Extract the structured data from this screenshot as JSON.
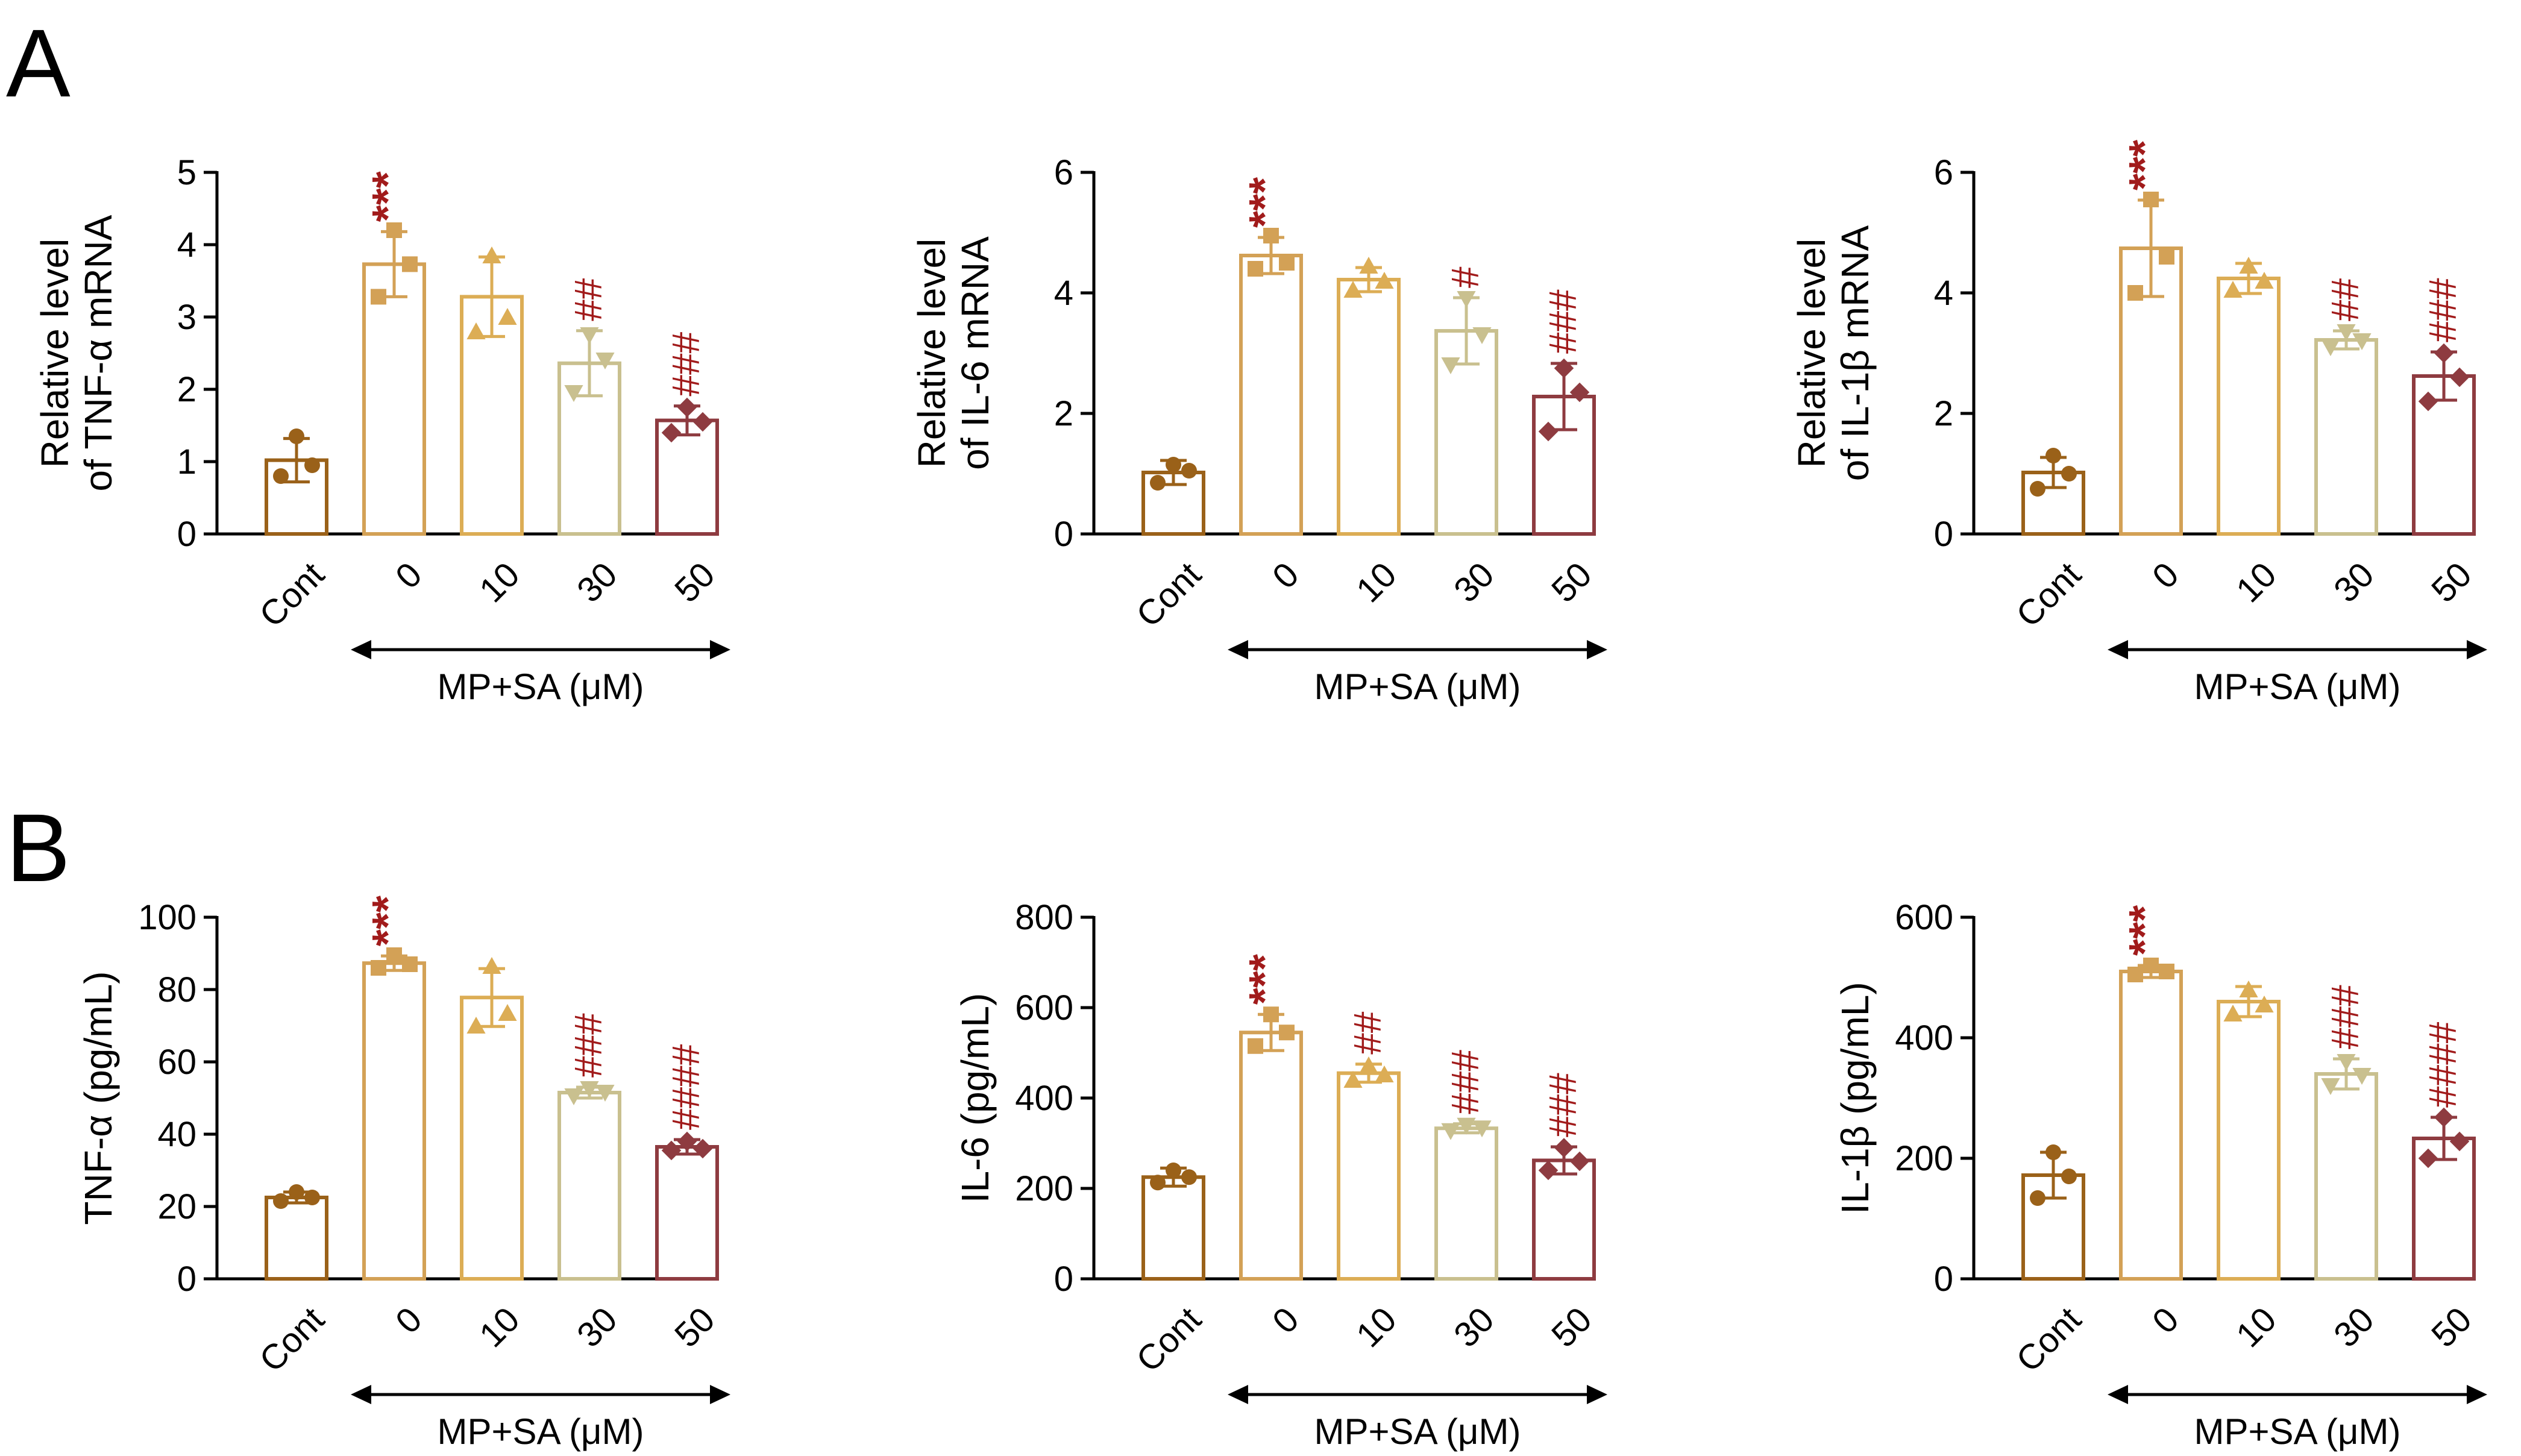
{
  "panel_labels": [
    "A",
    "B"
  ],
  "colors": [
    "#9a6119",
    "#d3a156",
    "#dcad55",
    "#c9c08f",
    "#8e3b40"
  ],
  "significance_color": "#a11b1b",
  "chart_data": [
    {
      "type": "bar",
      "panel": "A",
      "ylabel_lines": [
        "Relative level",
        "of TNF-α mRNA"
      ],
      "ylim": [
        0,
        5
      ],
      "yticks": [
        "0",
        "1",
        "2",
        "3",
        "4",
        "5"
      ],
      "categories": [
        "Cont",
        "0",
        "10",
        "30",
        "50"
      ],
      "group_label": "MP+SA (μM)",
      "marker_shapes": [
        "circle",
        "square",
        "triangle-up",
        "triangle-down",
        "diamond"
      ],
      "values": [
        1.02,
        3.73,
        3.28,
        2.36,
        1.57
      ],
      "errors": [
        0.3,
        0.45,
        0.55,
        0.45,
        0.2
      ],
      "points": [
        [
          0.8,
          0.95,
          1.35
        ],
        [
          3.28,
          3.73,
          4.2
        ],
        [
          2.8,
          3.0,
          3.85
        ],
        [
          1.95,
          2.4,
          2.75
        ],
        [
          1.4,
          1.55,
          1.75
        ]
      ],
      "significance": [
        "",
        "***",
        "",
        "##",
        "###"
      ]
    },
    {
      "type": "bar",
      "panel": "A",
      "ylabel_lines": [
        "Relative level",
        "of IL-6 mRNA"
      ],
      "ylim": [
        0,
        6
      ],
      "yticks": [
        "0",
        "2",
        "4",
        "6"
      ],
      "categories": [
        "Cont",
        "0",
        "10",
        "30",
        "50"
      ],
      "group_label": "MP+SA (μM)",
      "marker_shapes": [
        "circle",
        "square",
        "triangle-up",
        "triangle-down",
        "diamond"
      ],
      "values": [
        1.02,
        4.62,
        4.22,
        3.37,
        2.28
      ],
      "errors": [
        0.2,
        0.3,
        0.2,
        0.55,
        0.55
      ],
      "points": [
        [
          0.85,
          1.05,
          1.15
        ],
        [
          4.4,
          4.5,
          4.95
        ],
        [
          4.05,
          4.2,
          4.45
        ],
        [
          2.8,
          3.3,
          3.9
        ],
        [
          1.7,
          2.35,
          2.75
        ]
      ],
      "significance": [
        "",
        "***",
        "",
        "#",
        "###"
      ]
    },
    {
      "type": "bar",
      "panel": "A",
      "ylabel_lines": [
        "Relative level",
        "of IL-1β mRNA"
      ],
      "ylim": [
        0,
        6
      ],
      "yticks": [
        "0",
        "2",
        "4",
        "6"
      ],
      "categories": [
        "Cont",
        "0",
        "10",
        "30",
        "50"
      ],
      "group_label": "MP+SA (μM)",
      "marker_shapes": [
        "circle",
        "square",
        "triangle-up",
        "triangle-down",
        "diamond"
      ],
      "values": [
        1.02,
        4.74,
        4.24,
        3.22,
        2.62
      ],
      "errors": [
        0.25,
        0.8,
        0.25,
        0.15,
        0.4
      ],
      "points": [
        [
          0.75,
          1.0,
          1.3
        ],
        [
          4.0,
          4.6,
          5.55
        ],
        [
          4.05,
          4.2,
          4.45
        ],
        [
          3.1,
          3.2,
          3.35
        ],
        [
          2.2,
          2.6,
          3.0
        ]
      ],
      "significance": [
        "",
        "***",
        "",
        "##",
        "###"
      ]
    },
    {
      "type": "bar",
      "panel": "B",
      "ylabel_lines": [
        "TNF-α (pg/mL)"
      ],
      "ylim": [
        0,
        100
      ],
      "yticks": [
        "0",
        "20",
        "40",
        "60",
        "80",
        "100"
      ],
      "categories": [
        "Cont",
        "0",
        "10",
        "30",
        "50"
      ],
      "group_label": "MP+SA (μM)",
      "marker_shapes": [
        "circle",
        "square",
        "triangle-up",
        "triangle-down",
        "diamond"
      ],
      "values": [
        22.5,
        87.3,
        77.8,
        51.5,
        36.5
      ],
      "errors": [
        1.5,
        2.0,
        8.0,
        1.5,
        2.0
      ],
      "points": [
        [
          21.5,
          22.5,
          24.0
        ],
        [
          86.0,
          87.0,
          89.5
        ],
        [
          70.0,
          73.5,
          86.5
        ],
        [
          50.5,
          51.5,
          52.5
        ],
        [
          35.5,
          36.0,
          38.0
        ]
      ],
      "significance": [
        "",
        "***",
        "",
        "###",
        "####"
      ]
    },
    {
      "type": "bar",
      "panel": "B",
      "ylabel_lines": [
        "IL-6 (pg/mL)"
      ],
      "ylim": [
        0,
        800
      ],
      "yticks": [
        "0",
        "200",
        "400",
        "600",
        "800"
      ],
      "categories": [
        "Cont",
        "0",
        "10",
        "30",
        "50"
      ],
      "group_label": "MP+SA (μM)",
      "marker_shapes": [
        "circle",
        "square",
        "triangle-up",
        "triangle-down",
        "diamond"
      ],
      "values": [
        225,
        545,
        455,
        333,
        262
      ],
      "errors": [
        20,
        40,
        20,
        10,
        30
      ],
      "points": [
        [
          213,
          225,
          240
        ],
        [
          515,
          545,
          585
        ],
        [
          440,
          452,
          472
        ],
        [
          327,
          333,
          339
        ],
        [
          240,
          260,
          290
        ]
      ],
      "significance": [
        "",
        "***",
        "##",
        "###",
        "###"
      ]
    },
    {
      "type": "bar",
      "panel": "B",
      "ylabel_lines": [
        "IL-1β (pg/mL)"
      ],
      "ylim": [
        0,
        600
      ],
      "yticks": [
        "0",
        "200",
        "400",
        "600"
      ],
      "categories": [
        "Cont",
        "0",
        "10",
        "30",
        "50"
      ],
      "group_label": "MP+SA (μM)",
      "marker_shapes": [
        "circle",
        "square",
        "triangle-up",
        "triangle-down",
        "diamond"
      ],
      "values": [
        172,
        510,
        460,
        340,
        233
      ],
      "errors": [
        38,
        10,
        25,
        25,
        35
      ],
      "points": [
        [
          134,
          170,
          210
        ],
        [
          505,
          510,
          520
        ],
        [
          440,
          455,
          480
        ],
        [
          320,
          337,
          360
        ],
        [
          200,
          228,
          268
        ]
      ],
      "significance": [
        "",
        "***",
        "",
        "###",
        "####"
      ]
    }
  ]
}
